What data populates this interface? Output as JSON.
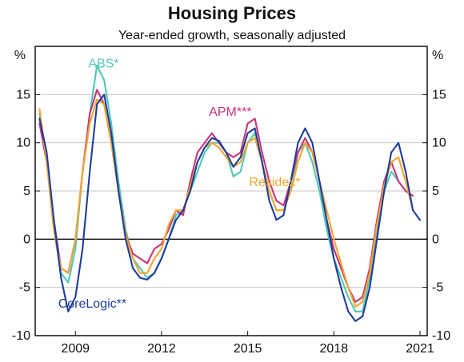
{
  "chart_data": {
    "type": "line",
    "title": "Housing Prices",
    "subtitle": "Year-ended growth, seasonally adjusted",
    "y_unit_left": "%",
    "y_unit_right": "%",
    "ylim": [
      -10,
      20
    ],
    "yticks": [
      -10,
      -5,
      0,
      5,
      10,
      15
    ],
    "xlim": [
      2007.6,
      2021.25
    ],
    "xticks": [
      {
        "value": 2009,
        "label": "2009"
      },
      {
        "value": 2012,
        "label": "2012"
      },
      {
        "value": 2015,
        "label": "2015"
      },
      {
        "value": 2018,
        "label": "2018"
      },
      {
        "value": 2021,
        "label": "2021"
      }
    ],
    "grid": true,
    "zero_line": true,
    "legend": "inline labels",
    "series": [
      {
        "name": "ABS*",
        "color": "#4fc9b8",
        "label_anchor": [
          2009.45,
          17.8
        ],
        "points": [
          [
            2007.75,
            13
          ],
          [
            2008,
            8
          ],
          [
            2008.25,
            1
          ],
          [
            2008.5,
            -3.5
          ],
          [
            2008.75,
            -4.5
          ],
          [
            2009,
            -1
          ],
          [
            2009.25,
            7
          ],
          [
            2009.5,
            13
          ],
          [
            2009.75,
            18
          ],
          [
            2010,
            16.5
          ],
          [
            2010.25,
            12
          ],
          [
            2010.5,
            6
          ],
          [
            2010.75,
            1
          ],
          [
            2011,
            -2
          ],
          [
            2011.25,
            -3
          ],
          [
            2011.5,
            -4
          ],
          [
            2011.75,
            -3.5
          ],
          [
            2012,
            -2
          ],
          [
            2012.25,
            0
          ],
          [
            2012.5,
            2.5
          ],
          [
            2012.75,
            3
          ],
          [
            2013,
            5
          ],
          [
            2013.25,
            7
          ],
          [
            2013.5,
            9
          ],
          [
            2013.75,
            10
          ],
          [
            2014,
            10
          ],
          [
            2014.25,
            9
          ],
          [
            2014.5,
            6.5
          ],
          [
            2014.75,
            7
          ],
          [
            2015,
            10
          ],
          [
            2015.25,
            11
          ],
          [
            2015.5,
            8
          ],
          [
            2015.75,
            5
          ],
          [
            2016,
            3
          ],
          [
            2016.25,
            3
          ],
          [
            2016.5,
            5
          ],
          [
            2016.75,
            9
          ],
          [
            2017,
            10
          ],
          [
            2017.25,
            8
          ],
          [
            2017.5,
            5
          ],
          [
            2017.75,
            1
          ],
          [
            2018,
            -2
          ],
          [
            2018.25,
            -4
          ],
          [
            2018.5,
            -6
          ],
          [
            2018.75,
            -7.5
          ],
          [
            2019,
            -7.5
          ],
          [
            2019.25,
            -4
          ],
          [
            2019.5,
            1
          ],
          [
            2019.75,
            5
          ],
          [
            2020,
            7
          ],
          [
            2020.25,
            6
          ],
          [
            2020.5,
            5
          ],
          [
            2020.75,
            4.5
          ]
        ]
      },
      {
        "name": "APM***",
        "color": "#c8357a",
        "label_anchor": [
          2013.65,
          12.8
        ],
        "points": [
          [
            2007.75,
            12
          ],
          [
            2008,
            8
          ],
          [
            2008.25,
            2
          ],
          [
            2008.5,
            -3
          ],
          [
            2008.75,
            -3.5
          ],
          [
            2009,
            0
          ],
          [
            2009.25,
            7
          ],
          [
            2009.5,
            13
          ],
          [
            2009.75,
            15.5
          ],
          [
            2010,
            14
          ],
          [
            2010.25,
            10
          ],
          [
            2010.5,
            5
          ],
          [
            2010.75,
            0.5
          ],
          [
            2011,
            -1.5
          ],
          [
            2011.25,
            -2
          ],
          [
            2011.5,
            -2.5
          ],
          [
            2011.75,
            -1
          ],
          [
            2012,
            -0.5
          ],
          [
            2012.25,
            1
          ],
          [
            2012.5,
            3
          ],
          [
            2012.75,
            2.5
          ],
          [
            2013,
            6
          ],
          [
            2013.25,
            9
          ],
          [
            2013.5,
            10
          ],
          [
            2013.75,
            11
          ],
          [
            2014,
            10
          ],
          [
            2014.25,
            9
          ],
          [
            2014.5,
            8.5
          ],
          [
            2014.75,
            9
          ],
          [
            2015,
            12
          ],
          [
            2015.25,
            12.5
          ],
          [
            2015.5,
            9
          ],
          [
            2015.75,
            6
          ],
          [
            2016,
            4
          ],
          [
            2016.25,
            3.5
          ],
          [
            2016.5,
            6
          ],
          [
            2016.75,
            9
          ],
          [
            2017,
            10.5
          ],
          [
            2017.25,
            9
          ],
          [
            2017.5,
            6
          ],
          [
            2017.75,
            2
          ],
          [
            2018,
            -1
          ],
          [
            2018.25,
            -3
          ],
          [
            2018.5,
            -5
          ],
          [
            2018.75,
            -6.5
          ],
          [
            2019,
            -6
          ],
          [
            2019.25,
            -3
          ],
          [
            2019.5,
            2
          ],
          [
            2019.75,
            6
          ],
          [
            2020,
            8
          ],
          [
            2020.25,
            6
          ],
          [
            2020.5,
            5
          ],
          [
            2020.75,
            4.5
          ]
        ]
      },
      {
        "name": "Residex*",
        "color": "#f2a630",
        "label_anchor": [
          2015.05,
          5.5
        ],
        "points": [
          [
            2007.75,
            13.5
          ],
          [
            2008,
            8
          ],
          [
            2008.25,
            1
          ],
          [
            2008.5,
            -3
          ],
          [
            2008.75,
            -3.5
          ],
          [
            2009,
            0
          ],
          [
            2009.25,
            7
          ],
          [
            2009.5,
            12
          ],
          [
            2009.75,
            14.5
          ],
          [
            2010,
            14
          ],
          [
            2010.25,
            10
          ],
          [
            2010.5,
            5
          ],
          [
            2010.75,
            0.5
          ],
          [
            2011,
            -2
          ],
          [
            2011.25,
            -3.5
          ],
          [
            2011.5,
            -3.5
          ],
          [
            2011.75,
            -2
          ],
          [
            2012,
            -1
          ],
          [
            2012.25,
            1.5
          ],
          [
            2012.5,
            3
          ],
          [
            2012.75,
            3
          ],
          [
            2013,
            5.5
          ],
          [
            2013.25,
            8
          ],
          [
            2013.5,
            9.5
          ],
          [
            2013.75,
            10
          ],
          [
            2014,
            9.5
          ],
          [
            2014.25,
            8.5
          ],
          [
            2014.5,
            7.5
          ],
          [
            2014.75,
            8
          ],
          [
            2015,
            10
          ],
          [
            2015.25,
            10.5
          ],
          [
            2015.5,
            8
          ],
          [
            2015.75,
            5
          ],
          [
            2016,
            3
          ],
          [
            2016.25,
            3
          ],
          [
            2016.5,
            5
          ],
          [
            2016.75,
            8
          ],
          [
            2017,
            10
          ],
          [
            2017.25,
            9
          ],
          [
            2017.5,
            6
          ],
          [
            2017.75,
            3
          ],
          [
            2018,
            0
          ],
          [
            2018.25,
            -2.5
          ],
          [
            2018.5,
            -5
          ],
          [
            2018.75,
            -7
          ],
          [
            2019,
            -6.5
          ],
          [
            2019.25,
            -3.5
          ],
          [
            2019.5,
            1.5
          ],
          [
            2019.75,
            5.5
          ],
          [
            2020,
            8
          ],
          [
            2020.25,
            8.5
          ],
          [
            2020.5,
            6
          ],
          [
            2020.75,
            3
          ]
        ]
      },
      {
        "name": "CoreLogic**",
        "color": "#1f3d99",
        "label_anchor": [
          2008.4,
          -7.1
        ],
        "points": [
          [
            2007.75,
            12.5
          ],
          [
            2008,
            9
          ],
          [
            2008.25,
            2
          ],
          [
            2008.5,
            -4
          ],
          [
            2008.75,
            -7.5
          ],
          [
            2009,
            -6
          ],
          [
            2009.25,
            -1
          ],
          [
            2009.5,
            7
          ],
          [
            2009.75,
            14
          ],
          [
            2010,
            15
          ],
          [
            2010.25,
            11
          ],
          [
            2010.5,
            5
          ],
          [
            2010.75,
            0
          ],
          [
            2011,
            -3
          ],
          [
            2011.25,
            -4
          ],
          [
            2011.5,
            -4.2
          ],
          [
            2011.75,
            -3.5
          ],
          [
            2012,
            -2
          ],
          [
            2012.25,
            0
          ],
          [
            2012.5,
            2
          ],
          [
            2012.75,
            3
          ],
          [
            2013,
            5
          ],
          [
            2013.25,
            8
          ],
          [
            2013.5,
            9.5
          ],
          [
            2013.75,
            10.5
          ],
          [
            2014,
            10.2
          ],
          [
            2014.25,
            9
          ],
          [
            2014.5,
            7.5
          ],
          [
            2014.75,
            8.5
          ],
          [
            2015,
            11
          ],
          [
            2015.25,
            11.5
          ],
          [
            2015.5,
            8
          ],
          [
            2015.75,
            4
          ],
          [
            2016,
            2
          ],
          [
            2016.25,
            2.5
          ],
          [
            2016.5,
            6
          ],
          [
            2016.75,
            10
          ],
          [
            2017,
            11.5
          ],
          [
            2017.25,
            10
          ],
          [
            2017.5,
            6
          ],
          [
            2017.75,
            2
          ],
          [
            2018,
            -2
          ],
          [
            2018.25,
            -5
          ],
          [
            2018.5,
            -7.5
          ],
          [
            2018.75,
            -8.5
          ],
          [
            2019,
            -8
          ],
          [
            2019.25,
            -5
          ],
          [
            2019.5,
            0
          ],
          [
            2019.75,
            5
          ],
          [
            2020,
            9
          ],
          [
            2020.25,
            10
          ],
          [
            2020.5,
            7
          ],
          [
            2020.75,
            3
          ],
          [
            2021,
            2
          ]
        ]
      }
    ]
  }
}
